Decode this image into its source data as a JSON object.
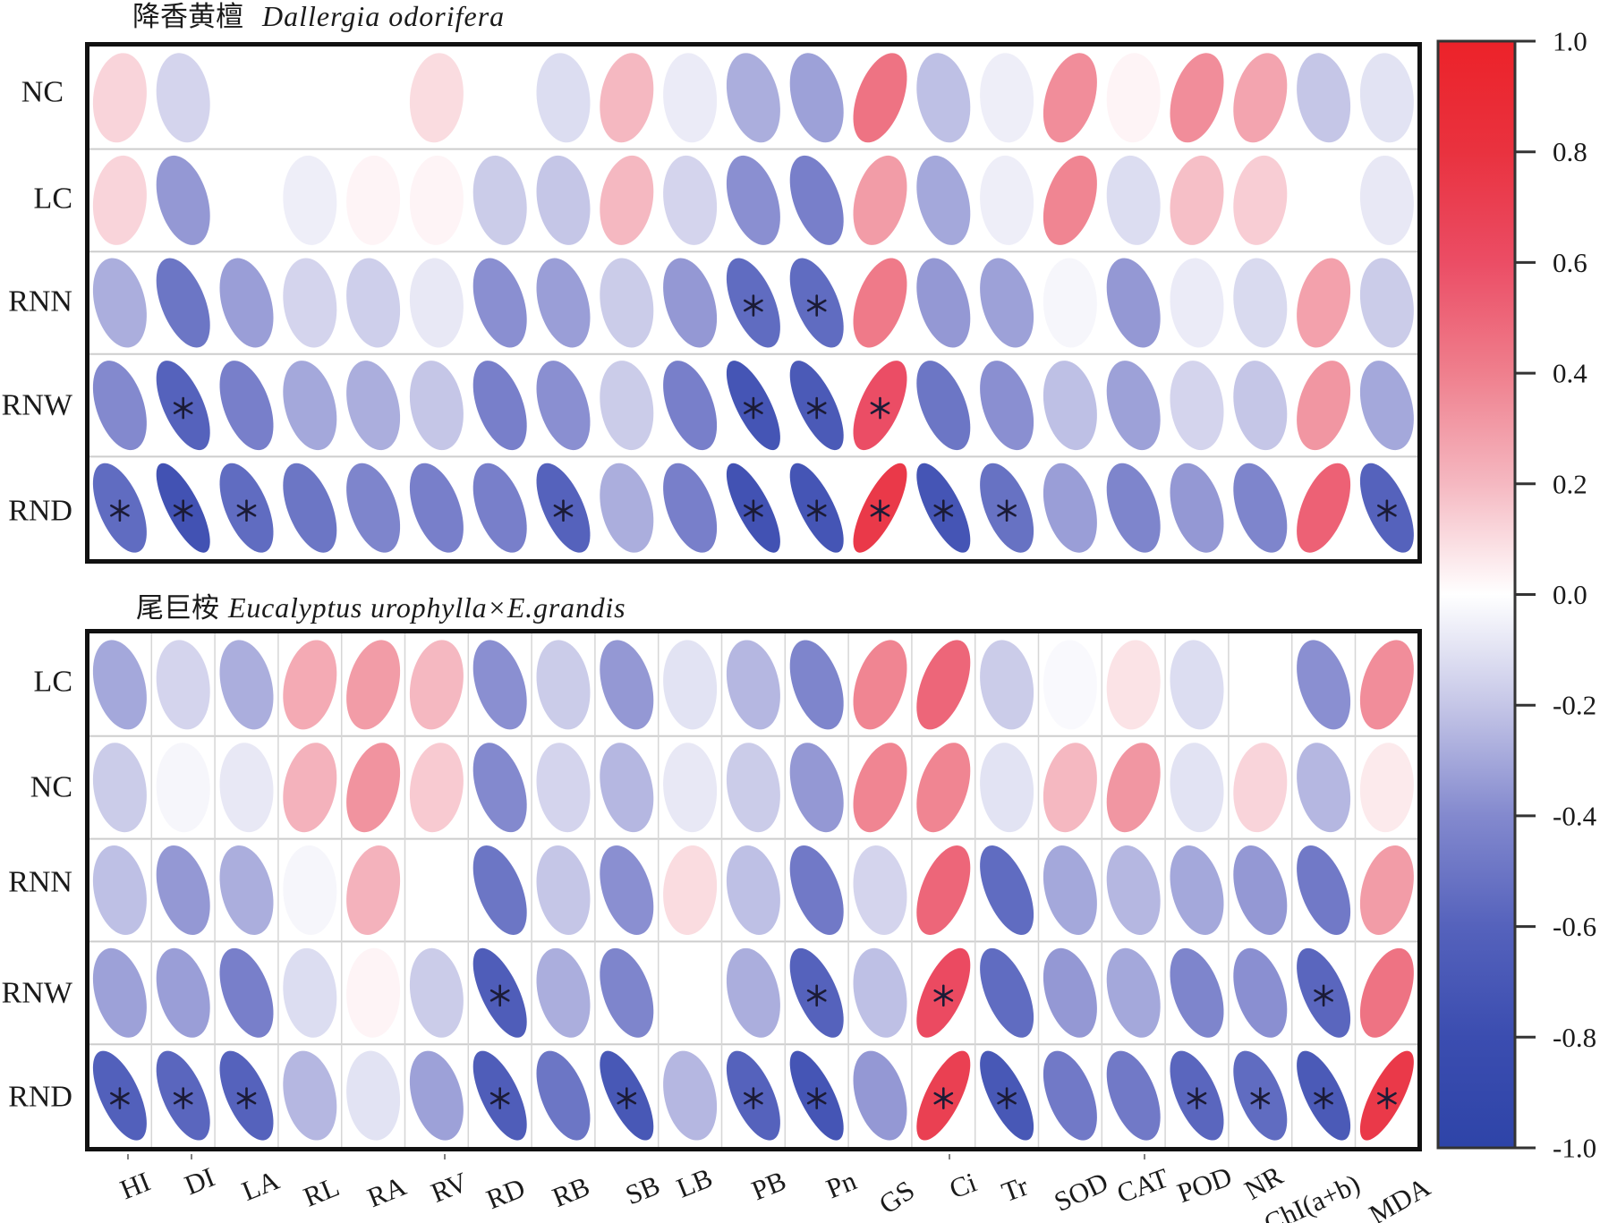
{
  "chart_data": [
    {
      "type": "heatmap",
      "method": "ellipse",
      "title_cn": "降香黄檀",
      "title_latin": "Dallergia odorifera",
      "rows": [
        "NC",
        "LC",
        "RNN",
        "RNW",
        "RND"
      ],
      "columns": [
        "HI",
        "DI",
        "LA",
        "RL",
        "RA",
        "RV",
        "RD",
        "RB",
        "SB",
        "LB",
        "PB",
        "Pn",
        "GS",
        "Ci",
        "Tr",
        "SOD",
        "CAT",
        "POD",
        "NR",
        "ChI(a+b)",
        "MDA"
      ],
      "values": [
        [
          0.12,
          -0.15,
          0.0,
          0.0,
          0.0,
          0.1,
          0.0,
          -0.12,
          0.2,
          -0.07,
          -0.28,
          -0.32,
          0.45,
          -0.22,
          -0.06,
          0.35,
          0.03,
          0.35,
          0.27,
          -0.2,
          -0.1
        ],
        [
          0.12,
          -0.35,
          0.0,
          -0.06,
          0.03,
          0.03,
          -0.18,
          -0.2,
          0.2,
          -0.15,
          -0.38,
          -0.45,
          0.3,
          -0.3,
          -0.06,
          0.38,
          -0.12,
          0.18,
          0.14,
          0.0,
          -0.08
        ],
        [
          -0.28,
          -0.5,
          -0.33,
          -0.15,
          -0.17,
          -0.08,
          -0.38,
          -0.33,
          -0.18,
          -0.35,
          -0.55,
          -0.55,
          0.42,
          -0.35,
          -0.32,
          -0.03,
          -0.35,
          -0.07,
          -0.13,
          0.28,
          -0.18
        ],
        [
          -0.4,
          -0.6,
          -0.45,
          -0.3,
          -0.28,
          -0.2,
          -0.45,
          -0.38,
          -0.18,
          -0.45,
          -0.72,
          -0.68,
          0.6,
          -0.5,
          -0.38,
          -0.22,
          -0.32,
          -0.15,
          -0.2,
          0.32,
          -0.3
        ],
        [
          -0.55,
          -0.75,
          -0.55,
          -0.5,
          -0.42,
          -0.45,
          -0.45,
          -0.6,
          -0.28,
          -0.45,
          -0.75,
          -0.72,
          0.75,
          -0.72,
          -0.52,
          -0.33,
          -0.42,
          -0.35,
          -0.42,
          0.52,
          -0.6
        ]
      ],
      "significant": [
        [
          0,
          0,
          0,
          0,
          0,
          0,
          0,
          0,
          0,
          0,
          0,
          0,
          0,
          0,
          0,
          0,
          0,
          0,
          0,
          0,
          0
        ],
        [
          0,
          0,
          0,
          0,
          0,
          0,
          0,
          0,
          0,
          0,
          0,
          0,
          0,
          0,
          0,
          0,
          0,
          0,
          0,
          0,
          0
        ],
        [
          0,
          0,
          0,
          0,
          0,
          0,
          0,
          0,
          0,
          0,
          1,
          1,
          0,
          0,
          0,
          0,
          0,
          0,
          0,
          0,
          0
        ],
        [
          0,
          1,
          0,
          0,
          0,
          0,
          0,
          0,
          0,
          0,
          1,
          1,
          1,
          0,
          0,
          0,
          0,
          0,
          0,
          0,
          0
        ],
        [
          1,
          1,
          1,
          0,
          0,
          0,
          0,
          1,
          0,
          0,
          1,
          1,
          1,
          1,
          1,
          0,
          0,
          0,
          0,
          0,
          1
        ]
      ],
      "significance_marker": "*",
      "grid": "horizontal",
      "value_range": [
        -1.0,
        1.0
      ],
      "xlabel": "",
      "ylabel": ""
    },
    {
      "type": "heatmap",
      "method": "ellipse",
      "title_cn": "尾巨桉",
      "title_latin": "Eucalyptus urophylla×E.grandis",
      "rows": [
        "LC",
        "NC",
        "RNN",
        "RNW",
        "RND"
      ],
      "columns": [
        "HI",
        "DI",
        "LA",
        "RL",
        "RA",
        "RV",
        "RD",
        "RB",
        "SB",
        "LB",
        "PB",
        "Pn",
        "GS",
        "Ci",
        "Tr",
        "SOD",
        "CAT",
        "POD",
        "NR",
        "ChI(a+b)",
        "MDA"
      ],
      "values": [
        [
          -0.3,
          -0.15,
          -0.28,
          0.25,
          0.3,
          0.2,
          -0.38,
          -0.18,
          -0.35,
          -0.1,
          -0.25,
          -0.42,
          0.38,
          0.5,
          -0.18,
          -0.02,
          0.08,
          -0.12,
          0.0,
          -0.38,
          0.35
        ],
        [
          -0.18,
          -0.03,
          -0.08,
          0.22,
          0.33,
          0.15,
          -0.4,
          -0.15,
          -0.25,
          -0.08,
          -0.18,
          -0.35,
          0.38,
          0.38,
          -0.1,
          0.2,
          0.32,
          -0.1,
          0.12,
          -0.25,
          0.06
        ],
        [
          -0.22,
          -0.35,
          -0.28,
          -0.03,
          0.22,
          0.0,
          -0.5,
          -0.2,
          -0.38,
          0.1,
          -0.22,
          -0.48,
          -0.15,
          0.5,
          -0.55,
          -0.3,
          -0.25,
          -0.3,
          -0.35,
          -0.48,
          0.3
        ],
        [
          -0.32,
          -0.33,
          -0.45,
          -0.12,
          0.03,
          -0.18,
          -0.65,
          -0.28,
          -0.42,
          0.0,
          -0.28,
          -0.6,
          -0.22,
          0.62,
          -0.55,
          -0.35,
          -0.3,
          -0.42,
          -0.38,
          -0.58,
          0.45
        ],
        [
          -0.62,
          -0.58,
          -0.6,
          -0.25,
          -0.1,
          -0.32,
          -0.65,
          -0.5,
          -0.7,
          -0.25,
          -0.6,
          -0.72,
          -0.35,
          0.7,
          -0.7,
          -0.48,
          -0.48,
          -0.58,
          -0.55,
          -0.68,
          0.75
        ]
      ],
      "significant": [
        [
          0,
          0,
          0,
          0,
          0,
          0,
          0,
          0,
          0,
          0,
          0,
          0,
          0,
          0,
          0,
          0,
          0,
          0,
          0,
          0,
          0
        ],
        [
          0,
          0,
          0,
          0,
          0,
          0,
          0,
          0,
          0,
          0,
          0,
          0,
          0,
          0,
          0,
          0,
          0,
          0,
          0,
          0,
          0
        ],
        [
          0,
          0,
          0,
          0,
          0,
          0,
          0,
          0,
          0,
          0,
          0,
          0,
          0,
          0,
          0,
          0,
          0,
          0,
          0,
          0,
          0
        ],
        [
          0,
          0,
          0,
          0,
          0,
          0,
          1,
          0,
          0,
          0,
          0,
          1,
          0,
          1,
          0,
          0,
          0,
          0,
          0,
          1,
          0
        ],
        [
          1,
          1,
          1,
          0,
          0,
          0,
          1,
          0,
          1,
          0,
          1,
          1,
          0,
          1,
          1,
          0,
          0,
          1,
          1,
          1,
          1
        ]
      ],
      "significance_marker": "*",
      "grid": "both",
      "value_range": [
        -1.0,
        1.0
      ],
      "xlabel": "",
      "ylabel": ""
    }
  ],
  "colorbar": {
    "placement": "right",
    "min": -1.0,
    "max": 1.0,
    "tick_values": [
      1.0,
      0.8,
      0.6,
      0.4,
      0.2,
      0.0,
      -0.2,
      -0.4,
      -0.6,
      -0.8,
      -1.0
    ],
    "tick_labels": [
      "1.0",
      "0.8",
      "0.6",
      "0.4",
      "0.2",
      "0.0",
      "-0.2",
      "-0.4",
      "-0.6",
      "-0.8",
      "-1.0"
    ],
    "color_scale": [
      {
        "value": -1.0,
        "color": "#2E44A8"
      },
      {
        "value": -0.8,
        "color": "#3B4DB0"
      },
      {
        "value": -0.6,
        "color": "#5562BC"
      },
      {
        "value": -0.4,
        "color": "#8389CE"
      },
      {
        "value": -0.2,
        "color": "#C5C6E7"
      },
      {
        "value": 0.0,
        "color": "#FFFFFF"
      },
      {
        "value": 0.2,
        "color": "#F5B8C1"
      },
      {
        "value": 0.4,
        "color": "#EF7F8D"
      },
      {
        "value": 0.6,
        "color": "#EB4D65"
      },
      {
        "value": 0.8,
        "color": "#E9323F"
      },
      {
        "value": 1.0,
        "color": "#EC2229"
      }
    ]
  }
}
